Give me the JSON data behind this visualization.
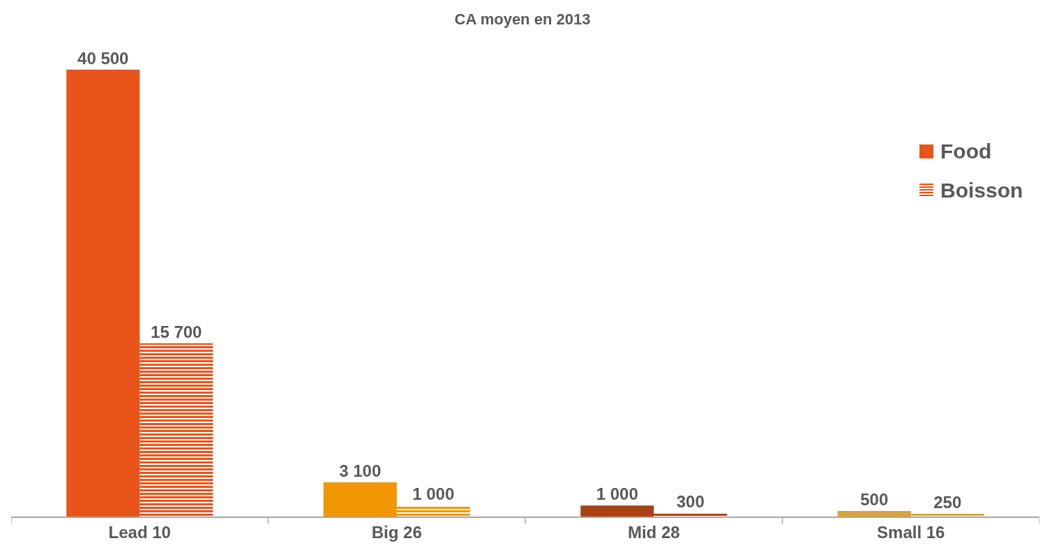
{
  "chart_data": {
    "type": "bar",
    "title": "CA moyen en 2013",
    "categories": [
      "Lead 10",
      "Big 26",
      "Mid 28",
      "Small 16"
    ],
    "series": [
      {
        "name": "Food",
        "color": "#e8541a",
        "colors": [
          "#e8541a",
          "#f09600",
          "#a84214",
          "#d9a53a"
        ],
        "values": [
          40500,
          3100,
          1000,
          500
        ],
        "value_labels": [
          "40 500",
          "3 100",
          "1 000",
          "500"
        ]
      },
      {
        "name": "Boisson",
        "color": "#e8541a",
        "colors": [
          "#e8541a",
          "#f09600",
          "#a84214",
          "#d9a53a"
        ],
        "values": [
          15700,
          1000,
          300,
          250
        ],
        "value_labels": [
          "15 700",
          "1 000",
          "300",
          "250"
        ]
      }
    ],
    "legend": "right",
    "grid": false
  }
}
